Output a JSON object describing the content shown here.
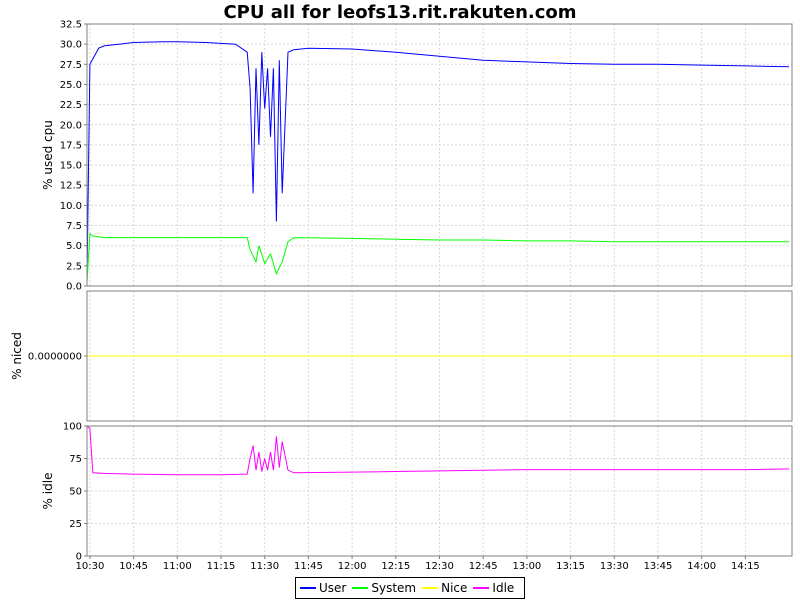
{
  "title": "CPU all for leofs13.rit.rakuten.com",
  "legend": [
    {
      "name": "User",
      "color": "#0000ff"
    },
    {
      "name": "System",
      "color": "#00ff00"
    },
    {
      "name": "Nice",
      "color": "#ffff00"
    },
    {
      "name": "Idle",
      "color": "#ff00ff"
    }
  ],
  "chart_data": [
    {
      "type": "line",
      "ylabel": "% used cpu",
      "ylim": [
        0,
        32.5
      ],
      "yticks": [
        "0.0",
        "2.5",
        "5.0",
        "7.5",
        "10.0",
        "12.5",
        "15.0",
        "17.5",
        "20.0",
        "22.5",
        "25.0",
        "27.5",
        "30.0",
        "32.5"
      ],
      "xlim": [
        "10:29",
        "14:31"
      ],
      "xticks": [
        "10:30",
        "10:45",
        "11:00",
        "11:15",
        "11:30",
        "11:45",
        "12:00",
        "12:15",
        "12:30",
        "12:45",
        "13:00",
        "13:15",
        "13:30",
        "13:45",
        "14:00",
        "14:15"
      ],
      "grid": true,
      "series": [
        {
          "name": "User",
          "color": "#0000ff",
          "x": [
            "10:29",
            "10:30",
            "10:33",
            "10:35",
            "10:40",
            "10:45",
            "10:55",
            "11:00",
            "11:10",
            "11:20",
            "11:24",
            "11:25",
            "11:26",
            "11:27",
            "11:28",
            "11:29",
            "11:30",
            "11:31",
            "11:32",
            "11:33",
            "11:34",
            "11:35",
            "11:36",
            "11:38",
            "11:40",
            "11:45",
            "12:00",
            "12:15",
            "12:30",
            "12:45",
            "13:00",
            "13:15",
            "13:30",
            "13:45",
            "14:00",
            "14:15",
            "14:30"
          ],
          "y": [
            0.5,
            27.5,
            29.5,
            29.8,
            30.0,
            30.2,
            30.3,
            30.3,
            30.2,
            30.0,
            29.0,
            24.5,
            11.5,
            27.0,
            17.5,
            29.0,
            22.0,
            27.0,
            18.5,
            27.0,
            8.0,
            28.0,
            11.5,
            29.0,
            29.3,
            29.5,
            29.4,
            29.0,
            28.5,
            28.0,
            27.8,
            27.6,
            27.5,
            27.5,
            27.4,
            27.3,
            27.2
          ]
        },
        {
          "name": "System",
          "color": "#00ff00",
          "x": [
            "10:29",
            "10:30",
            "10:31",
            "10:35",
            "10:45",
            "11:00",
            "11:15",
            "11:24",
            "11:25",
            "11:27",
            "11:28",
            "11:30",
            "11:32",
            "11:34",
            "11:36",
            "11:38",
            "11:40",
            "12:00",
            "12:15",
            "12:30",
            "12:45",
            "13:00",
            "13:15",
            "13:30",
            "13:45",
            "14:00",
            "14:15",
            "14:30"
          ],
          "y": [
            0.5,
            6.5,
            6.2,
            6.0,
            6.0,
            6.0,
            6.0,
            6.0,
            4.5,
            3.0,
            5.0,
            2.8,
            4.0,
            1.5,
            3.0,
            5.5,
            6.0,
            5.9,
            5.8,
            5.7,
            5.7,
            5.6,
            5.6,
            5.5,
            5.5,
            5.5,
            5.5,
            5.5
          ]
        },
        {
          "name": "Nice",
          "color": "#ffff00",
          "x": [
            "10:29",
            "14:31"
          ],
          "y": [
            0,
            0
          ]
        }
      ]
    },
    {
      "type": "line",
      "ylabel": "% niced",
      "yticks": [
        "0.0000000"
      ],
      "grid": true,
      "series": [
        {
          "name": "Nice",
          "color": "#ffff00",
          "x": [
            "10:29",
            "14:31"
          ],
          "y": [
            0,
            0
          ]
        }
      ]
    },
    {
      "type": "line",
      "ylabel": "% idle",
      "ylim": [
        0,
        100
      ],
      "yticks": [
        "0",
        "25",
        "50",
        "75",
        "100"
      ],
      "grid": true,
      "series": [
        {
          "name": "Idle",
          "color": "#ff00ff",
          "x": [
            "10:29",
            "10:30",
            "10:31",
            "10:35",
            "10:45",
            "11:00",
            "11:15",
            "11:24",
            "11:25",
            "11:26",
            "11:27",
            "11:28",
            "11:29",
            "11:30",
            "11:31",
            "11:32",
            "11:33",
            "11:34",
            "11:35",
            "11:36",
            "11:38",
            "11:40",
            "12:00",
            "12:15",
            "12:30",
            "12:45",
            "13:00",
            "13:15",
            "13:30",
            "13:45",
            "14:00",
            "14:15",
            "14:30"
          ],
          "y": [
            100,
            98,
            64,
            63.5,
            63,
            62.5,
            62.5,
            63,
            75,
            85,
            66,
            80,
            65,
            75,
            66,
            80,
            66,
            92,
            68,
            88,
            66,
            64,
            64.5,
            65,
            65.5,
            66,
            66.5,
            66.5,
            66.5,
            66.5,
            66.5,
            66.5,
            67
          ]
        }
      ]
    }
  ]
}
